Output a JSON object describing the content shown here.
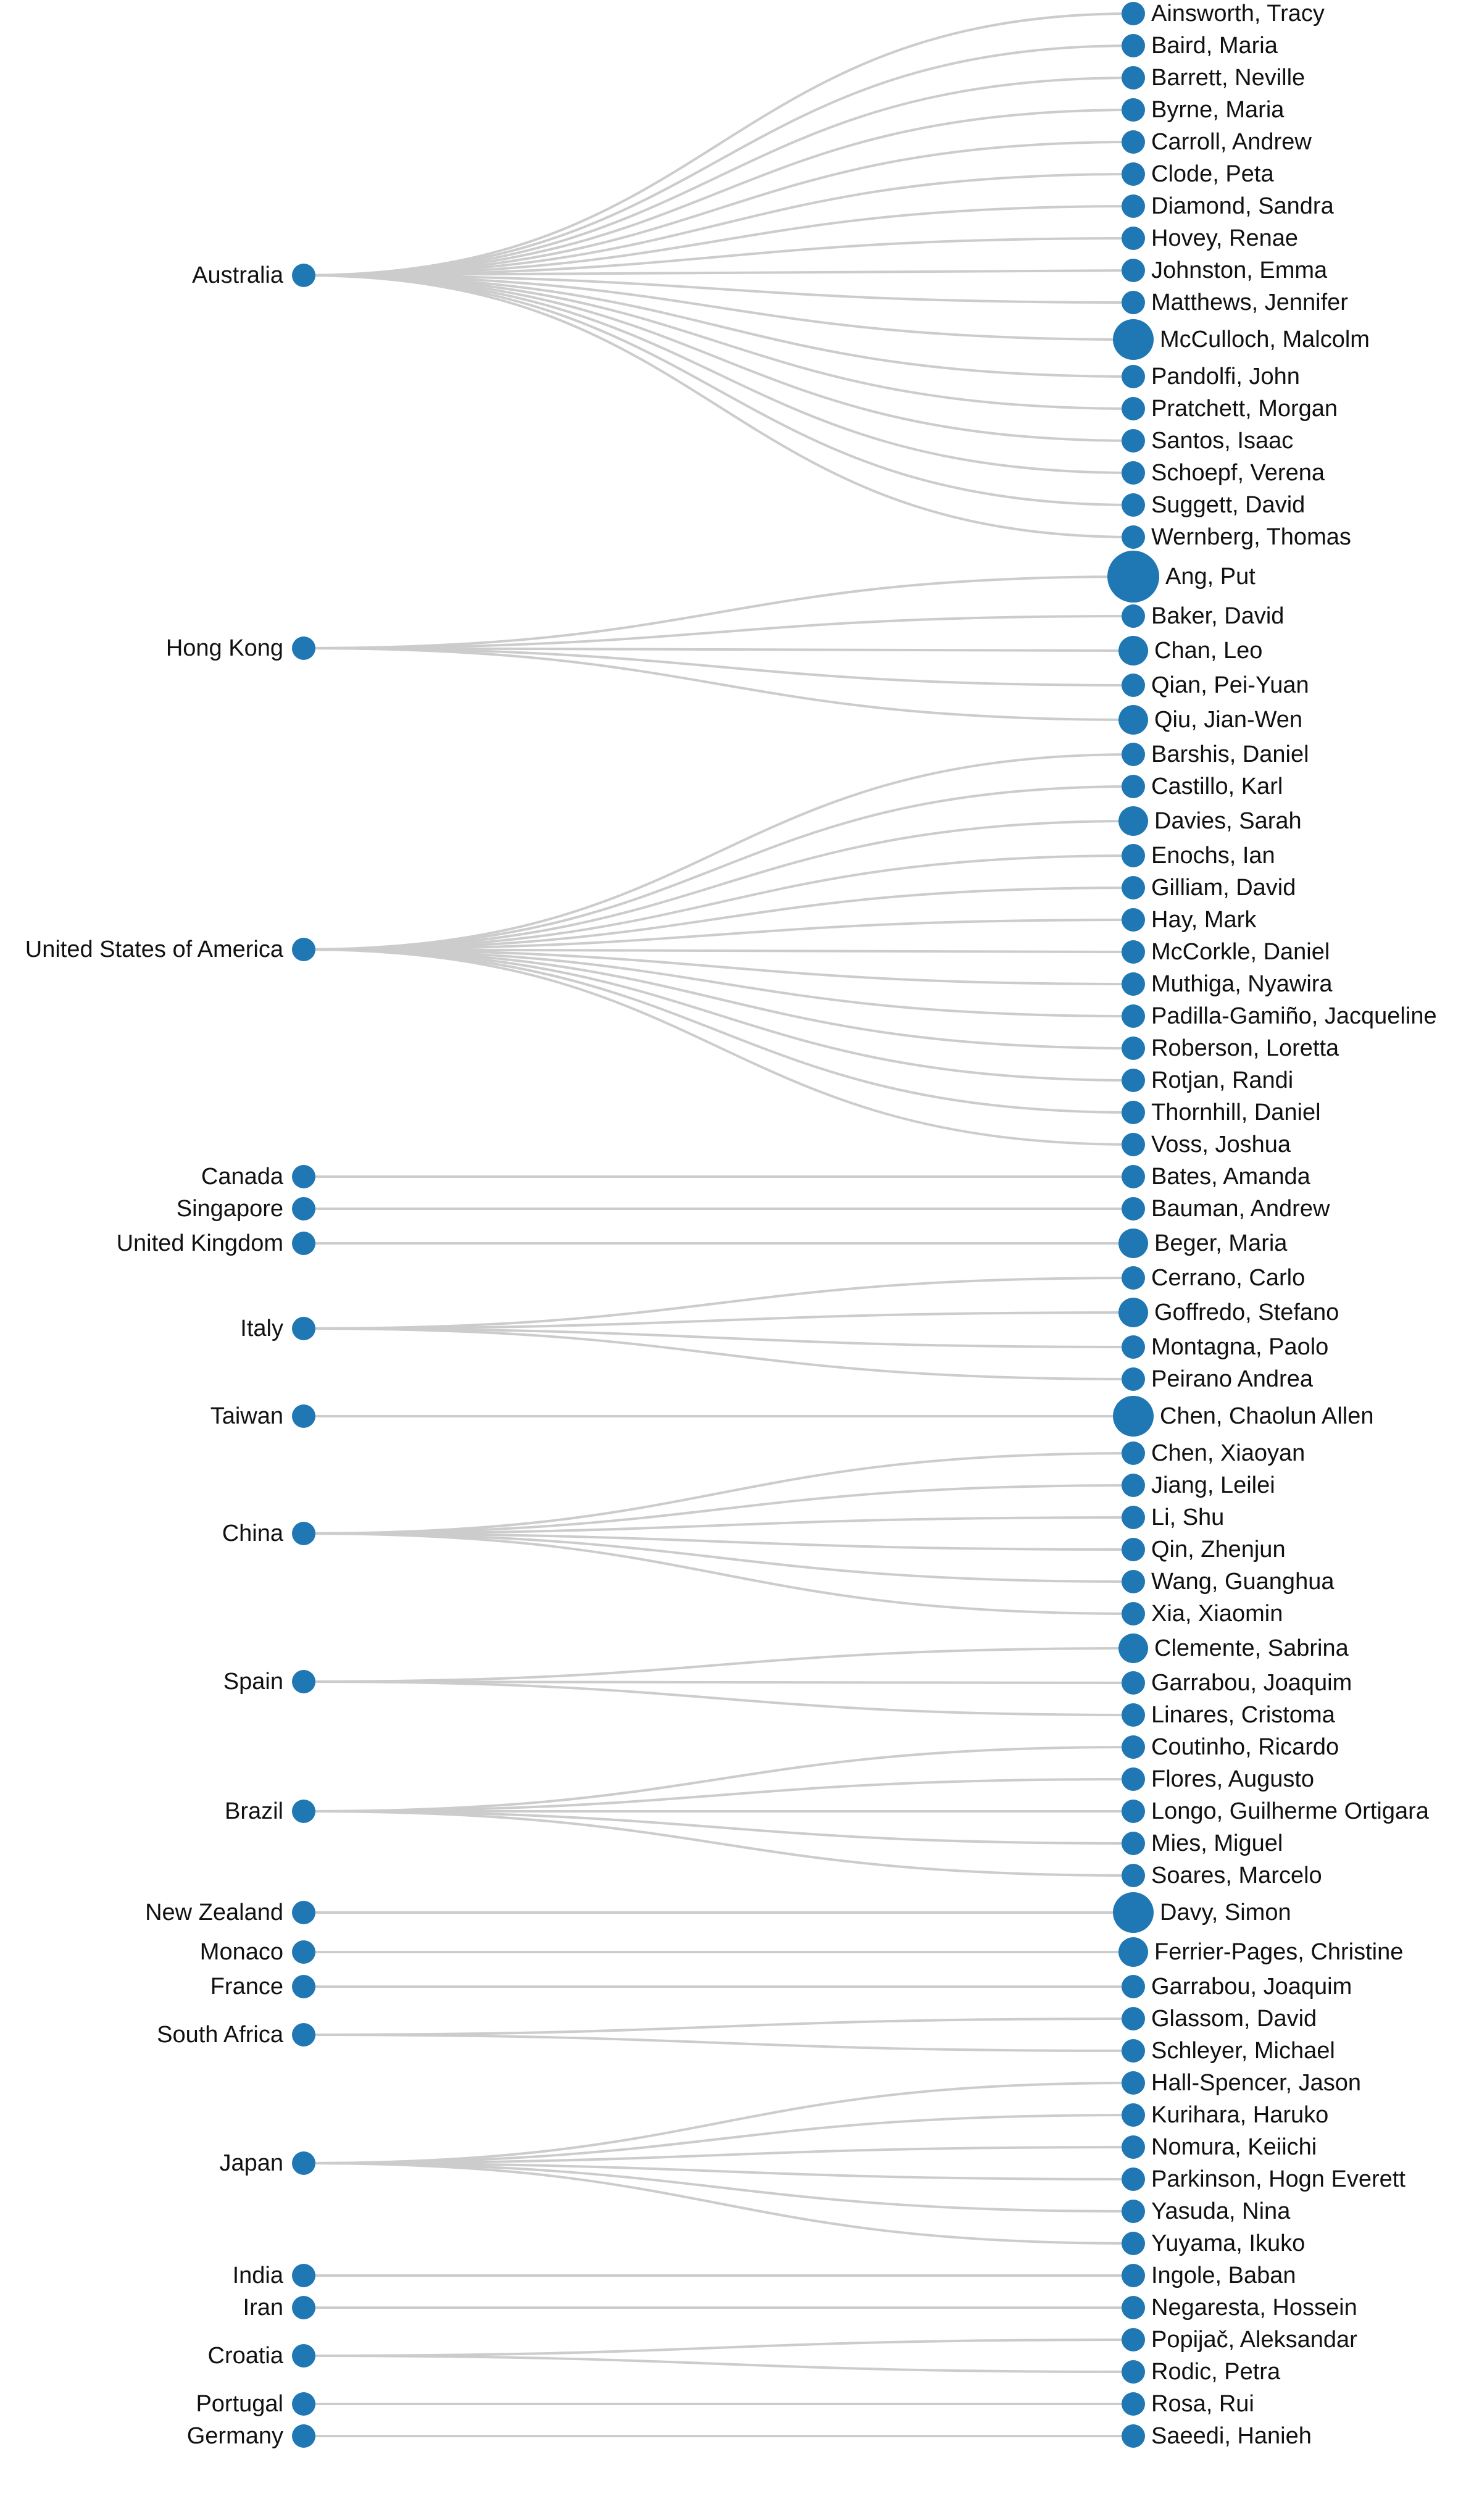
{
  "colors": {
    "node": "#1f77b4",
    "link": "#cccccc",
    "text": "#111111"
  },
  "countries": [
    {
      "name": "Australia",
      "people": [
        {
          "name": "Ainsworth, Tracy",
          "big": 0
        },
        {
          "name": "Baird, Maria",
          "big": 0
        },
        {
          "name": "Barrett, Neville",
          "big": 0
        },
        {
          "name": "Byrne, Maria",
          "big": 0
        },
        {
          "name": "Carroll, Andrew",
          "big": 0
        },
        {
          "name": "Clode, Peta",
          "big": 0
        },
        {
          "name": "Diamond, Sandra",
          "big": 0
        },
        {
          "name": "Hovey, Renae",
          "big": 0
        },
        {
          "name": "Johnston, Emma",
          "big": 0
        },
        {
          "name": "Matthews, Jennifer",
          "big": 0
        },
        {
          "name": "McCulloch, Malcolm",
          "big": 2
        },
        {
          "name": "Pandolfi, John",
          "big": 0
        },
        {
          "name": "Pratchett, Morgan",
          "big": 0
        },
        {
          "name": "Santos, Isaac",
          "big": 0
        },
        {
          "name": "Schoepf, Verena",
          "big": 0
        },
        {
          "name": "Suggett, David",
          "big": 0
        },
        {
          "name": "Wernberg, Thomas",
          "big": 0
        }
      ]
    },
    {
      "name": "Hong Kong",
      "people": [
        {
          "name": "Ang, Put",
          "big": 3
        },
        {
          "name": "Baker, David",
          "big": 0
        },
        {
          "name": "Chan, Leo",
          "big": 1
        },
        {
          "name": "Qian, Pei-Yuan",
          "big": 0
        },
        {
          "name": "Qiu, Jian-Wen",
          "big": 1
        }
      ]
    },
    {
      "name": "United States of America",
      "people": [
        {
          "name": "Barshis, Daniel",
          "big": 0
        },
        {
          "name": "Castillo, Karl",
          "big": 0
        },
        {
          "name": "Davies, Sarah",
          "big": 1
        },
        {
          "name": "Enochs, Ian",
          "big": 0
        },
        {
          "name": "Gilliam, David",
          "big": 0
        },
        {
          "name": "Hay, Mark",
          "big": 0
        },
        {
          "name": "McCorkle, Daniel",
          "big": 0
        },
        {
          "name": "Muthiga, Nyawira",
          "big": 0
        },
        {
          "name": "Padilla-Gamiño, Jacqueline",
          "big": 0
        },
        {
          "name": "Roberson, Loretta",
          "big": 0
        },
        {
          "name": "Rotjan, Randi",
          "big": 0
        },
        {
          "name": "Thornhill, Daniel",
          "big": 0
        },
        {
          "name": "Voss, Joshua",
          "big": 0
        }
      ]
    },
    {
      "name": "Canada",
      "people": [
        {
          "name": "Bates, Amanda",
          "big": 0
        }
      ]
    },
    {
      "name": "Singapore",
      "people": [
        {
          "name": "Bauman, Andrew",
          "big": 0
        }
      ]
    },
    {
      "name": "United Kingdom",
      "people": [
        {
          "name": "Beger, Maria",
          "big": 1
        }
      ]
    },
    {
      "name": "Italy",
      "people": [
        {
          "name": "Cerrano, Carlo",
          "big": 0
        },
        {
          "name": "Goffredo, Stefano",
          "big": 1
        },
        {
          "name": "Montagna, Paolo",
          "big": 0
        },
        {
          "name": "Peirano Andrea",
          "big": 0
        }
      ]
    },
    {
      "name": "Taiwan",
      "people": [
        {
          "name": "Chen, Chaolun Allen",
          "big": 2
        }
      ]
    },
    {
      "name": "China",
      "people": [
        {
          "name": "Chen, Xiaoyan",
          "big": 0
        },
        {
          "name": "Jiang, Leilei",
          "big": 0
        },
        {
          "name": "Li, Shu",
          "big": 0
        },
        {
          "name": "Qin, Zhenjun",
          "big": 0
        },
        {
          "name": "Wang, Guanghua",
          "big": 0
        },
        {
          "name": "Xia, Xiaomin",
          "big": 0
        }
      ]
    },
    {
      "name": "Spain",
      "people": [
        {
          "name": "Clemente, Sabrina",
          "big": 1
        },
        {
          "name": "Garrabou, Joaquim",
          "big": 0
        },
        {
          "name": "Linares, Cristoma",
          "big": 0
        }
      ]
    },
    {
      "name": "Brazil",
      "people": [
        {
          "name": "Coutinho, Ricardo",
          "big": 0
        },
        {
          "name": "Flores, Augusto",
          "big": 0
        },
        {
          "name": "Longo, Guilherme Ortigara",
          "big": 0
        },
        {
          "name": "Mies, Miguel",
          "big": 0
        },
        {
          "name": "Soares, Marcelo",
          "big": 0
        }
      ]
    },
    {
      "name": "New Zealand",
      "people": [
        {
          "name": "Davy, Simon",
          "big": 2
        }
      ]
    },
    {
      "name": "Monaco",
      "people": [
        {
          "name": "Ferrier-Pages, Christine",
          "big": 1
        }
      ]
    },
    {
      "name": "France",
      "people": [
        {
          "name": "Garrabou, Joaquim",
          "big": 0
        }
      ]
    },
    {
      "name": "South Africa",
      "people": [
        {
          "name": "Glassom, David",
          "big": 0
        },
        {
          "name": "Schleyer, Michael",
          "big": 0
        }
      ]
    },
    {
      "name": "Japan",
      "people": [
        {
          "name": "Hall-Spencer, Jason",
          "big": 0
        },
        {
          "name": "Kurihara, Haruko",
          "big": 0
        },
        {
          "name": "Nomura, Keiichi",
          "big": 0
        },
        {
          "name": "Parkinson, Hogn Everett",
          "big": 0
        },
        {
          "name": "Yasuda, Nina",
          "big": 0
        },
        {
          "name": "Yuyama, Ikuko",
          "big": 0
        }
      ]
    },
    {
      "name": "India",
      "people": [
        {
          "name": "Ingole, Baban",
          "big": 0
        }
      ]
    },
    {
      "name": "Iran",
      "people": [
        {
          "name": "Negaresta, Hossein",
          "big": 0
        }
      ]
    },
    {
      "name": "Croatia",
      "people": [
        {
          "name": "Popijač, Aleksandar",
          "big": 0
        },
        {
          "name": "Rodic, Petra",
          "big": 0
        }
      ]
    },
    {
      "name": "Portugal",
      "people": [
        {
          "name": "Rosa, Rui",
          "big": 0
        }
      ]
    },
    {
      "name": "Germany",
      "people": [
        {
          "name": "Saeedi, Hanieh",
          "big": 0
        }
      ]
    }
  ]
}
